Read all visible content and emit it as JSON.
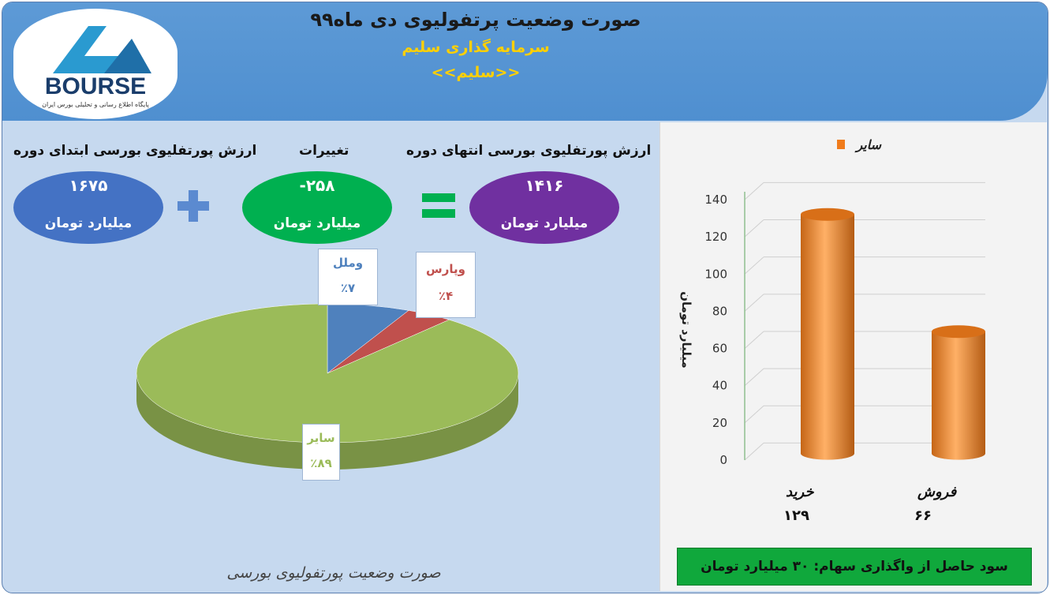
{
  "header": {
    "title": "صورت وضعیت پرتفولیوی دی ماه۹۹",
    "subtitle": "سرمایه گذاری سلیم",
    "symbol": "<<سلیم>>",
    "logo_text": "BOURSE",
    "logo_caption": "پایگاه اطلاع رسانی و تحلیلی بورس ایران"
  },
  "summary": {
    "start": {
      "label": "ارزش پورتفلیوی بورسی ابتدای دوره",
      "value": "۱۶۷۵",
      "unit": "میلیارد تومان",
      "color": "#4472c4"
    },
    "change": {
      "label": "تغییرات",
      "value": "-۲۵۸",
      "unit": "میلیارد تومان",
      "color": "#00b050"
    },
    "end": {
      "label": "ارزش پورتفلیوی بورسی انتهای دوره",
      "value": "۱۴۱۶",
      "unit": "میلیارد تومان",
      "color": "#7030a0"
    },
    "plus_icon": "plus-icon",
    "equals_icon": "equals-icon"
  },
  "chart_data": [
    {
      "type": "pie",
      "title": "صورت وضعیت پورتفولیوی بورسی",
      "slices": [
        {
          "name": "وملل",
          "label": "٪۷",
          "value": 7,
          "color": "#4f81bd"
        },
        {
          "name": "وپارس",
          "label": "٪۴",
          "value": 4,
          "color": "#c0504d"
        },
        {
          "name": "سایر",
          "label": "٪۸۹",
          "value": 89,
          "color": "#9bbb59"
        }
      ]
    },
    {
      "type": "bar",
      "legend": "سایر",
      "legend_position": "top-right",
      "ylabel": "میلیارد تومان",
      "ylim": [
        0,
        140
      ],
      "yticks": [
        "0",
        "20",
        "40",
        "60",
        "80",
        "100",
        "120",
        "140"
      ],
      "categories": [
        "خرید",
        "فروش"
      ],
      "category_values": [
        "۱۲۹",
        "۶۶"
      ],
      "values": [
        129,
        66
      ],
      "color": "#f07b1b",
      "grid": true
    }
  ],
  "footer": {
    "profit": "سود حاصل از واگذاری سهام: ۳۰ میلیارد تومان"
  }
}
